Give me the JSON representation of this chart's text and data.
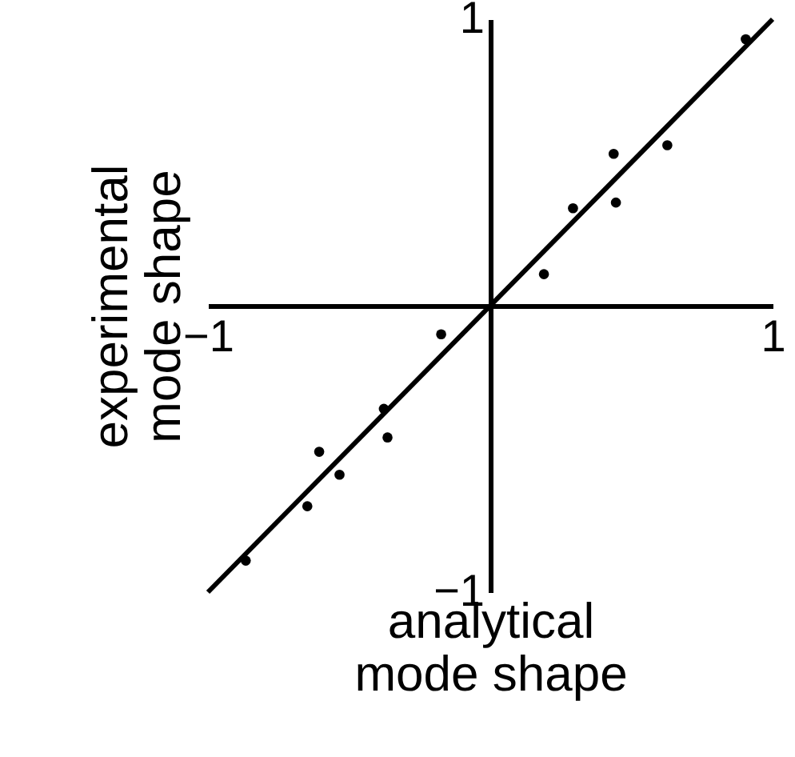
{
  "chart_data": {
    "type": "scatter",
    "xlabel": "analytical mode shape",
    "ylabel": "experimental mode shape",
    "xlim": [
      -1,
      1
    ],
    "ylim": [
      -1,
      1
    ],
    "xticks": [
      -1,
      1
    ],
    "yticks": [
      -1,
      1
    ],
    "grid": false,
    "series": [
      {
        "marker": "circle",
        "color": "#000000",
        "x": [
          0.905,
          0.627,
          0.437,
          0.445,
          0.293,
          0.19,
          -0.174,
          -0.377,
          -0.364,
          -0.606,
          -0.534,
          -0.648,
          -0.866
        ],
        "values": [
          0.93,
          0.56,
          0.53,
          0.36,
          0.34,
          0.11,
          -0.1,
          -0.36,
          -0.46,
          -0.51,
          -0.59,
          -0.7,
          -0.89
        ]
      },
      {
        "type": "line",
        "color": "#000000",
        "line_style": "solid",
        "x": [
          -1,
          1
        ],
        "values": [
          -1,
          1
        ]
      }
    ]
  }
}
